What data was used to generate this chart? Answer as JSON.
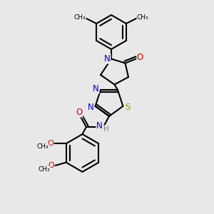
{
  "background_color": "#e8e8e8",
  "bond_color": "#000000",
  "n_color": "#0000cc",
  "o_color": "#cc0000",
  "s_color": "#999900",
  "h_color": "#808080",
  "line_width": 1.5,
  "figsize": [
    3.0,
    3.0
  ],
  "dpi": 100,
  "xlim": [
    0,
    10
  ],
  "ylim": [
    0,
    10
  ]
}
